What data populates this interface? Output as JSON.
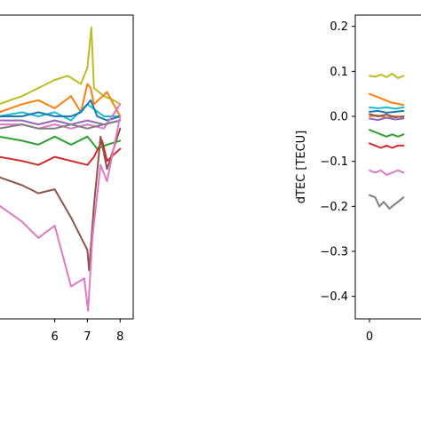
{
  "chart_data": [
    {
      "type": "line",
      "title": "",
      "xlabel": "",
      "ylabel": "",
      "xlim": [
        4.3,
        8.4
      ],
      "ylim": [
        -0.5,
        0.25
      ],
      "x_ticks": [
        6,
        7,
        8
      ],
      "x_tick_labels": [
        "6",
        "7",
        "8"
      ],
      "series": [
        {
          "color": "#bcbd22",
          "values": [
            [
              4.3,
              0.03
            ],
            [
              5.0,
              0.05
            ],
            [
              5.5,
              0.07
            ],
            [
              6.0,
              0.09
            ],
            [
              6.4,
              0.1
            ],
            [
              6.8,
              0.08
            ],
            [
              7.0,
              0.12
            ],
            [
              7.12,
              0.22
            ],
            [
              7.2,
              0.07
            ],
            [
              7.5,
              0.05
            ],
            [
              7.8,
              0.04
            ],
            [
              8.0,
              0.03
            ]
          ]
        },
        {
          "color": "#ff7f0e",
          "values": [
            [
              4.3,
              0.01
            ],
            [
              5.0,
              0.03
            ],
            [
              5.5,
              0.04
            ],
            [
              6.0,
              0.02
            ],
            [
              6.5,
              0.05
            ],
            [
              6.8,
              0.01
            ],
            [
              7.0,
              0.08
            ],
            [
              7.1,
              0.07
            ],
            [
              7.2,
              0.03
            ],
            [
              7.6,
              0.06
            ],
            [
              8.0,
              0.0
            ]
          ]
        },
        {
          "color": "#17becf",
          "values": [
            [
              4.3,
              0.0
            ],
            [
              5.0,
              0.01
            ],
            [
              5.5,
              0.0
            ],
            [
              6.0,
              0.01
            ],
            [
              6.5,
              -0.01
            ],
            [
              7.0,
              0.03
            ],
            [
              7.5,
              0.0
            ],
            [
              8.0,
              0.0
            ]
          ]
        },
        {
          "color": "#1f77b4",
          "values": [
            [
              4.3,
              0.0
            ],
            [
              5.0,
              0.0
            ],
            [
              5.5,
              0.01
            ],
            [
              6.0,
              0.0
            ],
            [
              6.5,
              0.0
            ],
            [
              6.8,
              0.01
            ],
            [
              7.1,
              0.04
            ],
            [
              7.3,
              0.0
            ],
            [
              7.6,
              -0.01
            ],
            [
              8.0,
              0.0
            ]
          ]
        },
        {
          "color": "#9467bd",
          "values": [
            [
              4.3,
              -0.01
            ],
            [
              5.0,
              -0.01
            ],
            [
              5.5,
              -0.02
            ],
            [
              6.0,
              -0.01
            ],
            [
              6.5,
              -0.02
            ],
            [
              7.0,
              -0.01
            ],
            [
              7.5,
              -0.02
            ],
            [
              8.0,
              -0.01
            ]
          ]
        },
        {
          "color": "#e377c2",
          "values": [
            [
              4.3,
              -0.02
            ],
            [
              5.0,
              -0.02
            ],
            [
              5.5,
              -0.03
            ],
            [
              6.0,
              -0.02
            ],
            [
              6.5,
              -0.03
            ],
            [
              7.0,
              -0.02
            ],
            [
              7.5,
              -0.03
            ],
            [
              8.0,
              0.03
            ]
          ]
        },
        {
          "color": "#7f7f7f",
          "values": [
            [
              4.3,
              -0.03
            ],
            [
              5.0,
              -0.02
            ],
            [
              5.5,
              -0.03
            ],
            [
              6.0,
              -0.03
            ],
            [
              6.5,
              -0.02
            ],
            [
              7.0,
              -0.03
            ],
            [
              7.5,
              -0.02
            ],
            [
              8.0,
              -0.01
            ]
          ]
        },
        {
          "color": "#2ca02c",
          "values": [
            [
              4.3,
              -0.05
            ],
            [
              5.0,
              -0.06
            ],
            [
              5.5,
              -0.07
            ],
            [
              6.0,
              -0.05
            ],
            [
              6.5,
              -0.07
            ],
            [
              7.0,
              -0.05
            ],
            [
              7.3,
              -0.08
            ],
            [
              7.6,
              -0.07
            ],
            [
              8.0,
              -0.06
            ]
          ]
        },
        {
          "color": "#d62728",
          "values": [
            [
              4.3,
              -0.1
            ],
            [
              5.0,
              -0.11
            ],
            [
              5.5,
              -0.12
            ],
            [
              6.0,
              -0.1
            ],
            [
              6.5,
              -0.11
            ],
            [
              7.0,
              -0.12
            ],
            [
              7.2,
              -0.1
            ],
            [
              7.45,
              -0.06
            ],
            [
              7.6,
              -0.11
            ],
            [
              8.0,
              -0.08
            ]
          ]
        },
        {
          "color": "#8c564b",
          "values": [
            [
              4.3,
              -0.15
            ],
            [
              5.0,
              -0.17
            ],
            [
              5.5,
              -0.19
            ],
            [
              6.0,
              -0.18
            ],
            [
              6.5,
              -0.25
            ],
            [
              7.0,
              -0.33
            ],
            [
              7.05,
              -0.38
            ],
            [
              7.2,
              -0.22
            ],
            [
              7.4,
              -0.05
            ],
            [
              7.6,
              -0.13
            ],
            [
              8.0,
              -0.03
            ]
          ]
        },
        {
          "color": "#e377c2",
          "values": [
            [
              4.3,
              -0.22
            ],
            [
              5.0,
              -0.26
            ],
            [
              5.5,
              -0.3
            ],
            [
              6.0,
              -0.27
            ],
            [
              6.5,
              -0.42
            ],
            [
              6.9,
              -0.4
            ],
            [
              7.02,
              -0.48
            ],
            [
              7.15,
              -0.3
            ],
            [
              7.4,
              -0.12
            ],
            [
              7.6,
              -0.16
            ],
            [
              8.0,
              0.0
            ]
          ]
        }
      ]
    },
    {
      "type": "line",
      "title": "",
      "xlabel": "",
      "ylabel": "dTEC [TECU]",
      "xlim": [
        -0.5,
        2.0
      ],
      "ylim": [
        -0.45,
        0.225
      ],
      "x_ticks": [
        0
      ],
      "x_tick_labels": [
        "0"
      ],
      "y_ticks": [
        0.2,
        0.1,
        0.0,
        -0.1,
        -0.2,
        -0.3,
        -0.4
      ],
      "y_tick_labels": [
        "0.2",
        "0.1",
        "0.0",
        "−0.1",
        "−0.2",
        "−0.3",
        "−0.4"
      ],
      "series": [
        {
          "color": "#bcbd22",
          "values": [
            [
              0,
              0.09
            ],
            [
              0.2,
              0.088
            ],
            [
              0.4,
              0.093
            ],
            [
              0.6,
              0.087
            ],
            [
              0.8,
              0.095
            ],
            [
              1.0,
              0.085
            ],
            [
              1.2,
              0.09
            ]
          ]
        },
        {
          "color": "#ff7f0e",
          "values": [
            [
              0,
              0.05
            ],
            [
              0.2,
              0.045
            ],
            [
              0.4,
              0.04
            ],
            [
              0.6,
              0.035
            ],
            [
              0.8,
              0.03
            ],
            [
              1.0,
              0.028
            ],
            [
              1.2,
              0.025
            ]
          ]
        },
        {
          "color": "#17becf",
          "values": [
            [
              0,
              0.02
            ],
            [
              0.3,
              0.018
            ],
            [
              0.6,
              0.02
            ],
            [
              0.9,
              0.017
            ],
            [
              1.2,
              0.02
            ]
          ]
        },
        {
          "color": "#1f77b4",
          "values": [
            [
              0,
              0.01
            ],
            [
              0.3,
              0.012
            ],
            [
              0.6,
              0.008
            ],
            [
              0.9,
              0.01
            ],
            [
              1.2,
              0.012
            ]
          ]
        },
        {
          "color": "#ff7f0e",
          "values": [
            [
              0,
              0.0
            ],
            [
              0.3,
              0.002
            ],
            [
              0.6,
              -0.003
            ],
            [
              0.9,
              0.0
            ],
            [
              1.2,
              -0.002
            ]
          ]
        },
        {
          "color": "#8c564b",
          "values": [
            [
              0,
              0.005
            ],
            [
              0.3,
              0.0
            ],
            [
              0.6,
              0.004
            ],
            [
              0.9,
              -0.002
            ],
            [
              1.2,
              0.0
            ]
          ]
        },
        {
          "color": "#9467bd",
          "values": [
            [
              0,
              -0.005
            ],
            [
              0.3,
              -0.008
            ],
            [
              0.6,
              -0.003
            ],
            [
              0.9,
              -0.007
            ],
            [
              1.2,
              -0.005
            ]
          ]
        },
        {
          "color": "#2ca02c",
          "values": [
            [
              0,
              -0.03
            ],
            [
              0.2,
              -0.035
            ],
            [
              0.4,
              -0.04
            ],
            [
              0.6,
              -0.045
            ],
            [
              0.8,
              -0.04
            ],
            [
              1.0,
              -0.045
            ],
            [
              1.2,
              -0.04
            ]
          ]
        },
        {
          "color": "#d62728",
          "values": [
            [
              0,
              -0.06
            ],
            [
              0.2,
              -0.065
            ],
            [
              0.4,
              -0.07
            ],
            [
              0.6,
              -0.065
            ],
            [
              0.8,
              -0.07
            ],
            [
              1.0,
              -0.065
            ],
            [
              1.2,
              -0.065
            ]
          ]
        },
        {
          "color": "#e377c2",
          "values": [
            [
              0,
              -0.12
            ],
            [
              0.2,
              -0.125
            ],
            [
              0.4,
              -0.12
            ],
            [
              0.6,
              -0.13
            ],
            [
              0.8,
              -0.125
            ],
            [
              1.0,
              -0.12
            ],
            [
              1.2,
              -0.125
            ]
          ]
        },
        {
          "color": "#7f7f7f",
          "values": [
            [
              0,
              -0.175
            ],
            [
              0.2,
              -0.18
            ],
            [
              0.35,
              -0.2
            ],
            [
              0.5,
              -0.19
            ],
            [
              0.7,
              -0.205
            ],
            [
              0.9,
              -0.195
            ],
            [
              1.0,
              -0.19
            ],
            [
              1.2,
              -0.18
            ]
          ]
        }
      ]
    }
  ]
}
